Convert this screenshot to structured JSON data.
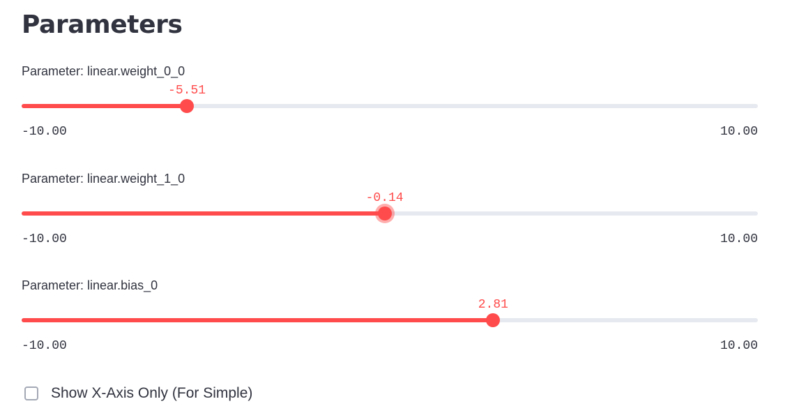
{
  "title": "Parameters",
  "accent_color": "#ff4b4b",
  "track_color": "#e6e9ef",
  "sliders": [
    {
      "label": "Parameter: linear.weight_0_0",
      "value": -5.51,
      "value_text": "-5.51",
      "min": -10,
      "max": 10,
      "min_text": "-10.00",
      "max_text": "10.00",
      "focused": false
    },
    {
      "label": "Parameter: linear.weight_1_0",
      "value": -0.14,
      "value_text": "-0.14",
      "min": -10,
      "max": 10,
      "min_text": "-10.00",
      "max_text": "10.00",
      "focused": true
    },
    {
      "label": "Parameter: linear.bias_0",
      "value": 2.81,
      "value_text": "2.81",
      "min": -10,
      "max": 10,
      "min_text": "-10.00",
      "max_text": "10.00",
      "focused": false
    }
  ],
  "checkbox": {
    "label": "Show X-Axis Only (For Simple)",
    "checked": false
  }
}
